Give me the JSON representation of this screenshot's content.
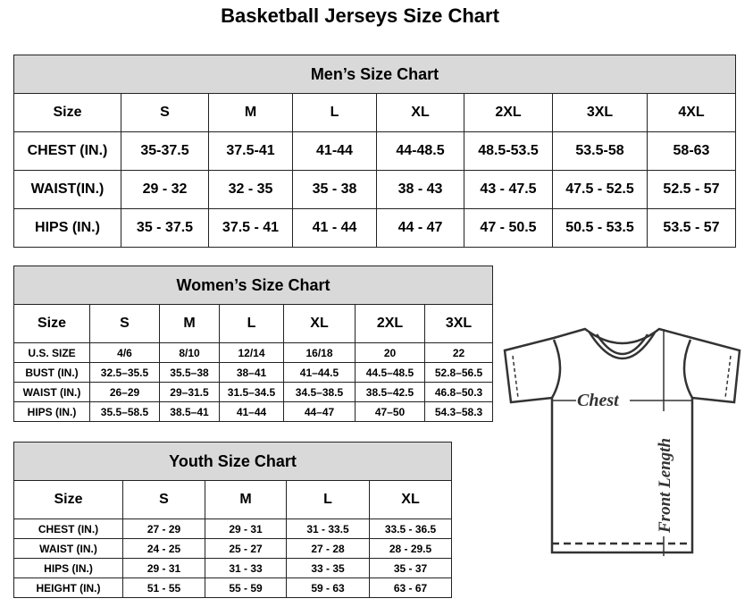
{
  "title": "Basketball Jerseys Size Chart",
  "men": {
    "title": "Men’s Size Chart",
    "rows": [
      [
        "Size",
        "S",
        "M",
        "L",
        "XL",
        "2XL",
        "3XL",
        "4XL"
      ],
      [
        "CHEST (IN.)",
        "35-37.5",
        "37.5-41",
        "41-44",
        "44-48.5",
        "48.5-53.5",
        "53.5-58",
        "58-63"
      ],
      [
        "WAIST(IN.)",
        "29 - 32",
        "32 - 35",
        "35 - 38",
        "38 - 43",
        "43 - 47.5",
        "47.5 - 52.5",
        "52.5 - 57"
      ],
      [
        "HIPS (IN.)",
        "35 - 37.5",
        "37.5 - 41",
        "41 - 44",
        "44 - 47",
        "47 - 50.5",
        "50.5 - 53.5",
        "53.5 - 57"
      ]
    ]
  },
  "women": {
    "title": "Women’s Size Chart",
    "rows": [
      [
        "Size",
        "S",
        "M",
        "L",
        "XL",
        "2XL",
        "3XL"
      ],
      [
        "U.S. SIZE",
        "4/6",
        "8/10",
        "12/14",
        "16/18",
        "20",
        "22"
      ],
      [
        "BUST (IN.)",
        "32.5–35.5",
        "35.5–38",
        "38–41",
        "41–44.5",
        "44.5–48.5",
        "52.8–56.5"
      ],
      [
        "WAIST (IN.)",
        "26–29",
        "29–31.5",
        "31.5–34.5",
        "34.5–38.5",
        "38.5–42.5",
        "46.8–50.3"
      ],
      [
        "HIPS (IN.)",
        "35.5–58.5",
        "38.5–41",
        "41–44",
        "44–47",
        "47–50",
        "54.3–58.3"
      ]
    ]
  },
  "youth": {
    "title": "Youth Size Chart",
    "rows": [
      [
        "Size",
        "S",
        "M",
        "L",
        "XL"
      ],
      [
        "CHEST (IN.)",
        "27 - 29",
        "29 - 31",
        "31 - 33.5",
        "33.5 - 36.5"
      ],
      [
        "WAIST (IN.)",
        "24 - 25",
        "25 - 27",
        "27 - 28",
        "28 - 29.5"
      ],
      [
        "HIPS (IN.)",
        "29 - 31",
        "31 - 33",
        "33 - 35",
        "35 - 37"
      ],
      [
        "HEIGHT (IN.)",
        "51 - 55",
        "55 - 59",
        "59 - 63",
        "63 - 67"
      ]
    ]
  },
  "diagram": {
    "chest_label": "Chest",
    "length_label": "Front Length",
    "icon": "t-shirt-icon"
  }
}
